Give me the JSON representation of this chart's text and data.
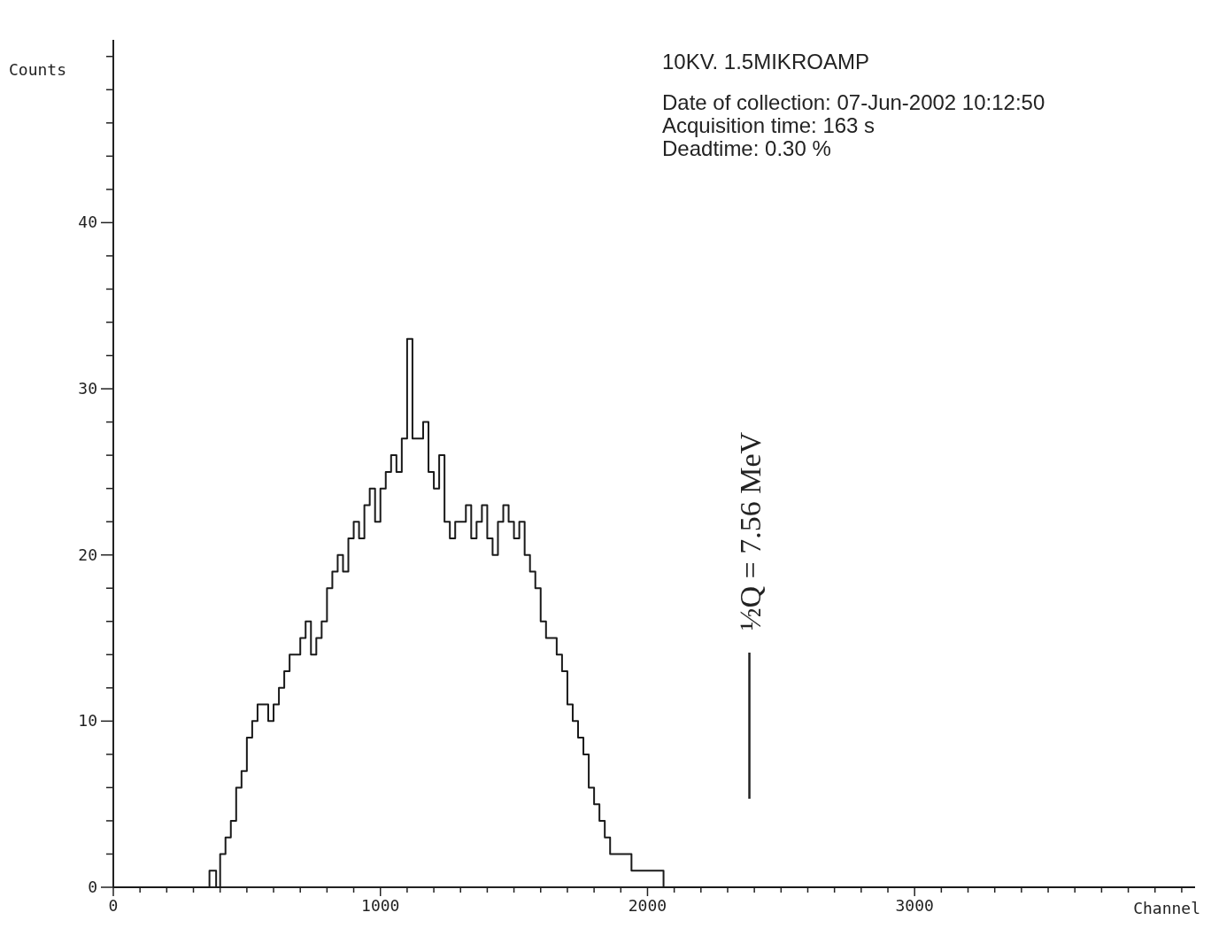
{
  "chart_data": {
    "type": "step",
    "xlabel": "Channel",
    "ylabel": "Counts",
    "x": [
      0,
      360,
      385,
      400,
      420,
      440,
      460,
      480,
      500,
      520,
      540,
      560,
      580,
      600,
      620,
      640,
      660,
      680,
      700,
      720,
      740,
      760,
      780,
      800,
      820,
      840,
      860,
      880,
      900,
      920,
      940,
      960,
      980,
      1000,
      1020,
      1040,
      1060,
      1080,
      1100,
      1120,
      1140,
      1160,
      1180,
      1200,
      1220,
      1240,
      1260,
      1280,
      1300,
      1320,
      1340,
      1360,
      1380,
      1400,
      1420,
      1440,
      1460,
      1480,
      1500,
      1520,
      1540,
      1560,
      1580,
      1600,
      1620,
      1640,
      1660,
      1680,
      1700,
      1720,
      1740,
      1760,
      1780,
      1800,
      1820,
      1840,
      1860,
      1880,
      1900,
      1920,
      1940,
      1960,
      1980,
      2000,
      2020,
      2040,
      2060,
      4050
    ],
    "series": [
      {
        "color": "#1a1a1a",
        "values": [
          0,
          1,
          0,
          2,
          3,
          4,
          6,
          7,
          9,
          10,
          11,
          11,
          10,
          11,
          12,
          13,
          14,
          14,
          15,
          16,
          14,
          15,
          16,
          18,
          19,
          20,
          19,
          21,
          22,
          21,
          23,
          24,
          22,
          24,
          25,
          26,
          25,
          27,
          33,
          27,
          27,
          28,
          25,
          24,
          26,
          22,
          21,
          22,
          22,
          23,
          21,
          22,
          23,
          21,
          20,
          22,
          23,
          22,
          21,
          22,
          20,
          19,
          18,
          16,
          15,
          15,
          14,
          13,
          11,
          10,
          9,
          8,
          6,
          5,
          4,
          3,
          2,
          2,
          2,
          2,
          1,
          1,
          1,
          1,
          1,
          1,
          0,
          0
        ]
      }
    ],
    "xlim": [
      0,
      4050
    ],
    "ylim": [
      0,
      51
    ],
    "xticks": [
      0,
      {
        "value": 100,
        "label": null
      },
      {
        "value": 200,
        "label": null
      },
      {
        "value": 300,
        "label": null
      },
      {
        "value": 400,
        "label": null
      },
      {
        "value": 500,
        "label": null
      },
      {
        "value": 600,
        "label": null
      },
      {
        "value": 700,
        "label": null
      },
      {
        "value": 800,
        "label": null
      },
      {
        "value": 900,
        "label": null
      },
      1000,
      {
        "value": 1100,
        "label": null
      },
      {
        "value": 1200,
        "label": null
      },
      {
        "value": 1300,
        "label": null
      },
      {
        "value": 1400,
        "label": null
      },
      {
        "value": 1500,
        "label": null
      },
      {
        "value": 1600,
        "label": null
      },
      {
        "value": 1700,
        "label": null
      },
      {
        "value": 1800,
        "label": null
      },
      {
        "value": 1900,
        "label": null
      },
      2000,
      {
        "value": 2100,
        "label": null
      },
      {
        "value": 2200,
        "label": null
      },
      {
        "value": 2300,
        "label": null
      },
      {
        "value": 2400,
        "label": null
      },
      {
        "value": 2500,
        "label": null
      },
      {
        "value": 2600,
        "label": null
      },
      {
        "value": 2700,
        "label": null
      },
      {
        "value": 2800,
        "label": null
      },
      {
        "value": 2900,
        "label": null
      },
      3000,
      {
        "value": 3100,
        "label": null
      },
      {
        "value": 3200,
        "label": null
      },
      {
        "value": 3300,
        "label": null
      },
      {
        "value": 3400,
        "label": null
      },
      {
        "value": 3500,
        "label": null
      },
      {
        "value": 3600,
        "label": null
      },
      {
        "value": 3700,
        "label": null
      },
      {
        "value": 3800,
        "label": null
      },
      {
        "value": 3900,
        "label": null
      },
      {
        "value": 4000,
        "label": null
      }
    ],
    "yticks": [
      0,
      {
        "value": 2,
        "label": null
      },
      {
        "value": 4,
        "label": null
      },
      {
        "value": 6,
        "label": null
      },
      {
        "value": 8,
        "label": null
      },
      10,
      {
        "value": 12,
        "label": null
      },
      {
        "value": 14,
        "label": null
      },
      {
        "value": 16,
        "label": null
      },
      {
        "value": 18,
        "label": null
      },
      20,
      {
        "value": 22,
        "label": null
      },
      {
        "value": 24,
        "label": null
      },
      {
        "value": 26,
        "label": null
      },
      {
        "value": 28,
        "label": null
      },
      30,
      {
        "value": 32,
        "label": null
      },
      {
        "value": 34,
        "label": null
      },
      {
        "value": 36,
        "label": null
      },
      {
        "value": 38,
        "label": null
      },
      40,
      {
        "value": 42,
        "label": null
      },
      {
        "value": 44,
        "label": null
      },
      {
        "value": 46,
        "label": null
      },
      {
        "value": 48,
        "label": null
      },
      {
        "value": 50,
        "label": null
      }
    ],
    "grid": false,
    "annotations": [
      "10KV. 1.5MIKROAMP",
      "Date of collection: 07-Jun-2002 10:12:50",
      "Acquisition time: 163 s",
      "Deadtime: 0.30 %",
      "½Q = 7.56 MeV"
    ]
  }
}
